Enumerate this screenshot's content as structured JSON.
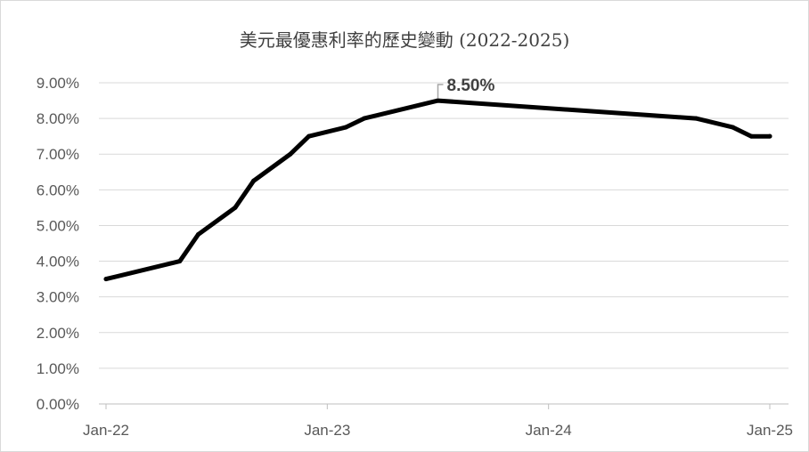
{
  "chart_data": {
    "type": "line",
    "title": "美元最優惠利率的歷史變動 (2022-2025)",
    "xlabel": "",
    "ylabel": "",
    "ylim": [
      0,
      9
    ],
    "ytick_labels": [
      "0.00%",
      "1.00%",
      "2.00%",
      "3.00%",
      "4.00%",
      "5.00%",
      "6.00%",
      "7.00%",
      "8.00%",
      "9.00%"
    ],
    "xtick_labels": [
      "Jan-22",
      "Jan-23",
      "Jan-24",
      "Jan-25"
    ],
    "grid": true,
    "legend": "none",
    "series": [
      {
        "color": "#000000",
        "points": [
          {
            "x": "2022-01",
            "y": 3.5
          },
          {
            "x": "2022-05",
            "y": 4.0
          },
          {
            "x": "2022-06",
            "y": 4.75
          },
          {
            "x": "2022-08",
            "y": 5.5
          },
          {
            "x": "2022-09",
            "y": 6.25
          },
          {
            "x": "2022-11",
            "y": 7.0
          },
          {
            "x": "2022-12",
            "y": 7.5
          },
          {
            "x": "2023-02",
            "y": 7.75
          },
          {
            "x": "2023-03",
            "y": 8.0
          },
          {
            "x": "2023-07",
            "y": 8.5
          },
          {
            "x": "2024-09",
            "y": 8.0
          },
          {
            "x": "2024-11",
            "y": 7.75
          },
          {
            "x": "2024-12",
            "y": 7.5
          },
          {
            "x": "2025-01",
            "y": 7.5
          }
        ]
      }
    ],
    "annotation": {
      "x": "2023-07",
      "y": 8.5,
      "text": "8.50%"
    }
  }
}
